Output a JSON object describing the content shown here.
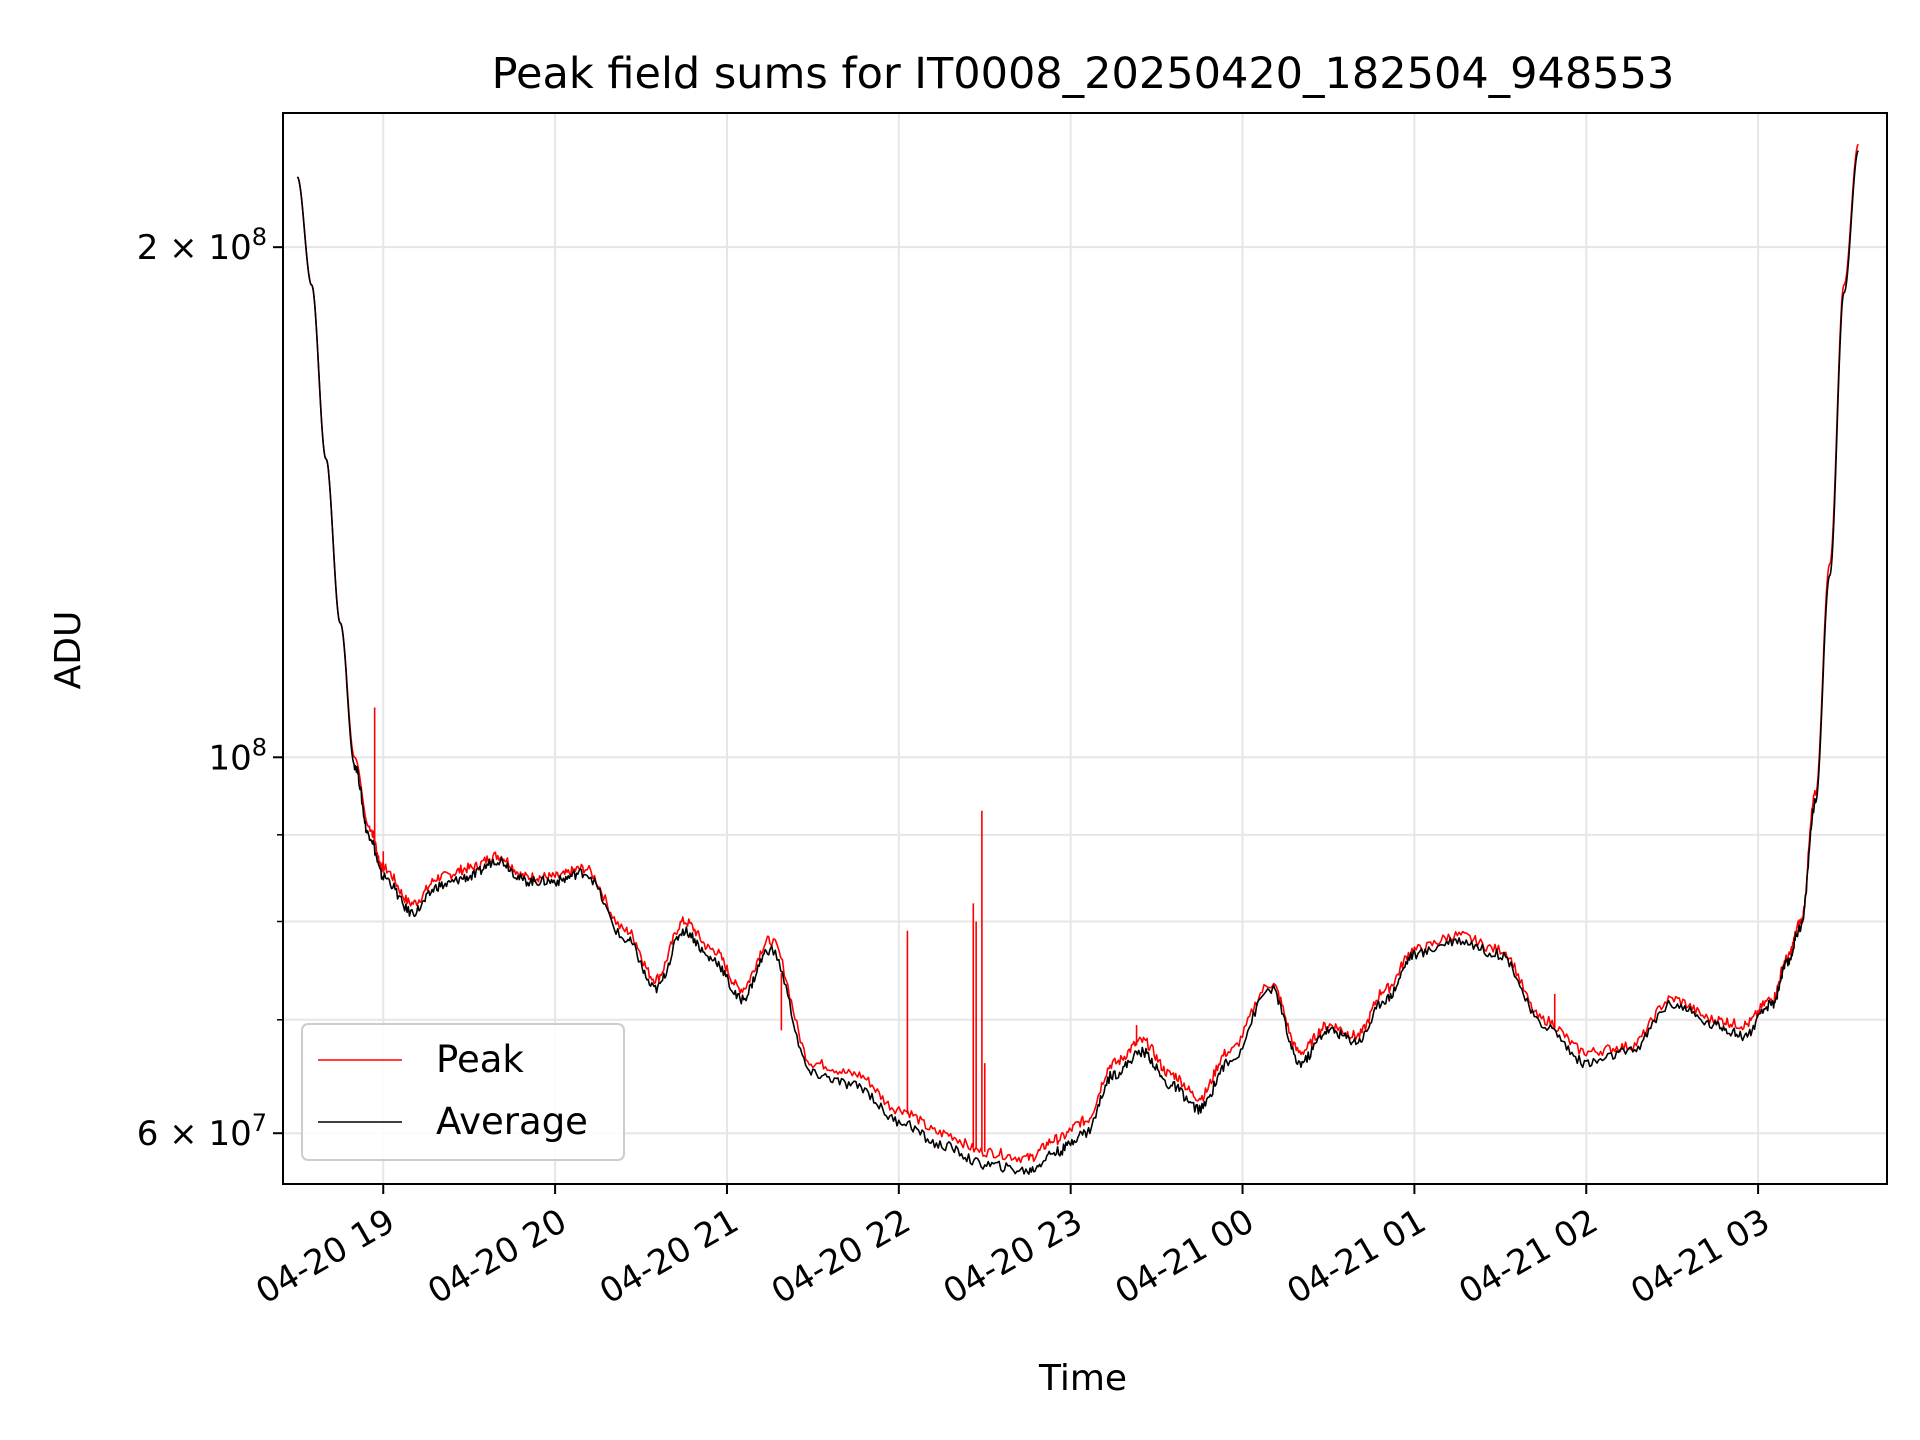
{
  "chart_data": {
    "type": "line",
    "title": "Peak field sums for IT0008_20250420_182504_948553",
    "xlabel": "Time",
    "ylabel": "ADU",
    "yscale": "log",
    "grid": true,
    "legend_position": "lower-left",
    "xlim": [
      "2025-04-20 18:25",
      "2025-04-21 03:45"
    ],
    "ylim": [
      56000000,
      240000000
    ],
    "x_ticks": [
      "04-20 19",
      "04-20 20",
      "04-20 21",
      "04-20 22",
      "04-20 23",
      "04-21 00",
      "04-21 01",
      "04-21 02",
      "04-21 03"
    ],
    "y_ticks": [
      {
        "label_base": "2 × 10",
        "label_exp": "8",
        "value": 200000000
      },
      {
        "label_base": "10",
        "label_exp": "8",
        "value": 100000000
      },
      {
        "label_base": "6 × 10",
        "label_exp": "7",
        "value": 60000000
      }
    ],
    "y_minor_gridlines": [
      70000000,
      80000000,
      90000000
    ],
    "x": [
      "2025-04-20 18:30",
      "2025-04-20 18:35",
      "2025-04-20 18:40",
      "2025-04-20 18:45",
      "2025-04-20 18:50",
      "2025-04-20 18:55",
      "2025-04-20 19:00",
      "2025-04-20 19:10",
      "2025-04-20 19:20",
      "2025-04-20 19:30",
      "2025-04-20 19:40",
      "2025-04-20 19:50",
      "2025-04-20 20:00",
      "2025-04-20 20:10",
      "2025-04-20 20:25",
      "2025-04-20 20:35",
      "2025-04-20 20:45",
      "2025-04-20 20:55",
      "2025-04-20 21:05",
      "2025-04-20 21:15",
      "2025-04-20 21:30",
      "2025-04-20 21:45",
      "2025-04-20 22:00",
      "2025-04-20 22:15",
      "2025-04-20 22:30",
      "2025-04-20 22:45",
      "2025-04-20 22:55",
      "2025-04-20 23:05",
      "2025-04-20 23:15",
      "2025-04-20 23:25",
      "2025-04-20 23:35",
      "2025-04-20 23:45",
      "2025-04-20 23:55",
      "2025-04-21 00:10",
      "2025-04-21 00:20",
      "2025-04-21 00:30",
      "2025-04-21 00:40",
      "2025-04-21 00:50",
      "2025-04-21 01:00",
      "2025-04-21 01:15",
      "2025-04-21 01:30",
      "2025-04-21 01:45",
      "2025-04-21 02:00",
      "2025-04-21 02:15",
      "2025-04-21 02:30",
      "2025-04-21 02:45",
      "2025-04-21 02:55",
      "2025-04-21 03:05",
      "2025-04-21 03:10",
      "2025-04-21 03:15",
      "2025-04-21 03:20",
      "2025-04-21 03:25",
      "2025-04-21 03:30",
      "2025-04-21 03:35"
    ],
    "series": [
      {
        "name": "Peak",
        "color": "#ff0000",
        "values": [
          220000000,
          190000000,
          150000000,
          120000000,
          100000000,
          91000000,
          86000000,
          82000000,
          85000000,
          86000000,
          87500000,
          85000000,
          85000000,
          86000000,
          79000000,
          74000000,
          80000000,
          77000000,
          73000000,
          78000000,
          66000000,
          65000000,
          62000000,
          60000000,
          58500000,
          58000000,
          59500000,
          61000000,
          66000000,
          68000000,
          65000000,
          63000000,
          67000000,
          73500000,
          67000000,
          69500000,
          68500000,
          73000000,
          77000000,
          78500000,
          77000000,
          70000000,
          67000000,
          67500000,
          72000000,
          70000000,
          69500000,
          72000000,
          76000000,
          80000000,
          95000000,
          130000000,
          190000000,
          230000000
        ]
      },
      {
        "name": "Average",
        "color": "#000000",
        "values": [
          220000000,
          190000000,
          150000000,
          120000000,
          99000000,
          90000000,
          85000000,
          81000000,
          84000000,
          85000000,
          87000000,
          84500000,
          84500000,
          85500000,
          78000000,
          73000000,
          79000000,
          76000000,
          72000000,
          77000000,
          65000000,
          64000000,
          61000000,
          59000000,
          57500000,
          57000000,
          58500000,
          60000000,
          65000000,
          67000000,
          64000000,
          62000000,
          66000000,
          73000000,
          66000000,
          69000000,
          68000000,
          72000000,
          76500000,
          78000000,
          76500000,
          69500000,
          66000000,
          67000000,
          71500000,
          69500000,
          68500000,
          71500000,
          75500000,
          79500000,
          94000000,
          128000000,
          188000000,
          228000000
        ]
      }
    ],
    "spikes": [
      {
        "series": "Peak",
        "x": "2025-04-20 18:57",
        "value": 107000000
      },
      {
        "series": "Peak",
        "x": "2025-04-20 19:00",
        "value": 88000000
      },
      {
        "series": "Peak",
        "x": "2025-04-20 21:19",
        "value": 69000000
      },
      {
        "series": "Peak",
        "x": "2025-04-20 22:03",
        "value": 79000000
      },
      {
        "series": "Peak",
        "x": "2025-04-20 22:26",
        "value": 82000000
      },
      {
        "series": "Peak",
        "x": "2025-04-20 22:27",
        "value": 80000000
      },
      {
        "series": "Peak",
        "x": "2025-04-20 22:29",
        "value": 93000000
      },
      {
        "series": "Peak",
        "x": "2025-04-20 22:30",
        "value": 66000000
      },
      {
        "series": "Peak",
        "x": "2025-04-20 23:23",
        "value": 69500000
      },
      {
        "series": "Peak",
        "x": "2025-04-21 01:49",
        "value": 72500000
      }
    ]
  }
}
